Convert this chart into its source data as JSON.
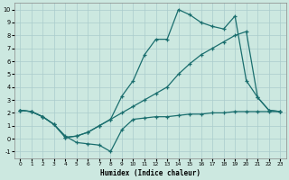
{
  "xlabel": "Humidex (Indice chaleur)",
  "background_color": "#cce8e0",
  "grid_color": "#aacccc",
  "line_color": "#1a6e6e",
  "xlim": [
    -0.5,
    23.5
  ],
  "ylim": [
    -1.5,
    10.5
  ],
  "xticks": [
    0,
    1,
    2,
    3,
    4,
    5,
    6,
    7,
    8,
    9,
    10,
    11,
    12,
    13,
    14,
    15,
    16,
    17,
    18,
    19,
    20,
    21,
    22,
    23
  ],
  "yticks": [
    -1,
    0,
    1,
    2,
    3,
    4,
    5,
    6,
    7,
    8,
    9,
    10
  ],
  "line1_x": [
    0,
    1,
    2,
    3,
    4,
    5,
    6,
    7,
    8,
    9,
    10,
    11,
    12,
    13,
    14,
    15,
    16,
    17,
    18,
    19,
    20,
    21,
    22,
    23
  ],
  "line1_y": [
    2.2,
    2.1,
    1.7,
    1.1,
    0.2,
    -0.3,
    -0.4,
    -0.5,
    -1.0,
    0.7,
    1.5,
    1.6,
    1.7,
    1.7,
    1.8,
    1.9,
    1.9,
    2.0,
    2.0,
    2.1,
    2.1,
    2.1,
    2.1,
    2.1
  ],
  "line2_x": [
    0,
    1,
    2,
    3,
    4,
    5,
    6,
    7,
    8,
    9,
    10,
    11,
    12,
    13,
    14,
    15,
    16,
    17,
    18,
    19,
    20,
    21,
    22,
    23
  ],
  "line2_y": [
    2.2,
    2.1,
    1.7,
    1.1,
    0.1,
    0.2,
    0.5,
    1.0,
    1.5,
    2.0,
    2.5,
    3.0,
    3.5,
    4.0,
    5.0,
    5.8,
    6.5,
    7.0,
    7.5,
    8.0,
    8.3,
    3.2,
    2.2,
    2.1
  ],
  "line3_x": [
    0,
    1,
    2,
    3,
    4,
    5,
    6,
    7,
    8,
    9,
    10,
    11,
    12,
    13,
    14,
    15,
    16,
    17,
    18,
    19,
    20,
    21,
    22,
    23
  ],
  "line3_y": [
    2.2,
    2.1,
    1.7,
    1.1,
    0.1,
    0.2,
    0.5,
    1.0,
    1.5,
    3.3,
    4.5,
    6.5,
    7.7,
    7.7,
    10.0,
    9.6,
    9.0,
    8.7,
    8.5,
    9.5,
    4.5,
    3.2,
    2.2,
    2.1
  ]
}
